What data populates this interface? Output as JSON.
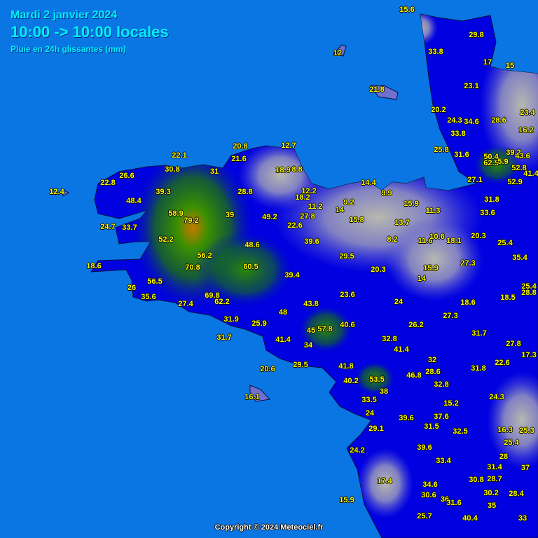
{
  "header": {
    "date": "Mardi 2 janvier 2024",
    "time_range": "10:00 -> 10:00 locales",
    "subtitle": "Pluie en 24h glissantes (mm)"
  },
  "footer": {
    "copyright": "Copyright © 2024 Meteociel.fr"
  },
  "colors": {
    "sea": "#0a76e4",
    "land_high": "#0000e0",
    "land_low": "#8c8cc8",
    "heavy_rain": "#2a8a00",
    "max_rain": "#c87800",
    "label": "#ffff00"
  },
  "stations": [
    "15.6",
    "29.8",
    "33.8",
    "12",
    "17",
    "15",
    "21.8",
    "23.1",
    "20.2",
    "23.4",
    "24.3",
    "34.6",
    "28.6",
    "16.2",
    "33.8",
    "25.8",
    "31.6",
    "22.1",
    "20.8",
    "12.7",
    "21.6",
    "30.8",
    "31",
    "18.9",
    "8.8",
    "50.4",
    "62.5",
    "5.9",
    "39.2",
    "43.6",
    "52.8",
    "41.4",
    "26.6",
    "22.8",
    "12.4",
    "39.3",
    "28.8",
    "14.4",
    "9.9",
    "12.2",
    "18.2",
    "27.1",
    "52.9",
    "15.9",
    "11.2",
    "9.2",
    "14",
    "31.8",
    "48.4",
    "11.3",
    "33.6",
    "27.8",
    "15.8",
    "58.9",
    "79.2",
    "39",
    "49.2",
    "13.7",
    "24.7",
    "33.7",
    "22.6",
    "52.2",
    "8.2",
    "11.6",
    "10.6",
    "18.1",
    "20.3",
    "39.6",
    "25.4",
    "48.6",
    "56.2",
    "29.5",
    "35.4",
    "18.6",
    "70.8",
    "60.5",
    "20.3",
    "15.9",
    "27.3",
    "39.4",
    "14",
    "56.5",
    "26",
    "35.6",
    "25.4",
    "28.8",
    "18.5",
    "23.6",
    "69.8",
    "62.2",
    "27.4",
    "18.6",
    "43.8",
    "24",
    "48",
    "27.3",
    "26.2",
    "45",
    "57.8",
    "40.6",
    "31.9",
    "25.9",
    "31.7",
    "31.7",
    "41.4",
    "32.8",
    "27.8",
    "34",
    "41.4",
    "17.3",
    "32",
    "29.5",
    "41.8",
    "22.6",
    "31.8",
    "28.6",
    "20.6",
    "46.8",
    "40.2",
    "53.5",
    "32.8",
    "38",
    "24.3",
    "16.1",
    "33.5",
    "15.2",
    "24",
    "39.6",
    "37.6",
    "31.5",
    "32.5",
    "16.3",
    "25.3",
    "29.1",
    "25.4",
    "39.6",
    "24.2",
    "28",
    "33.4",
    "31.4",
    "37",
    "17.4",
    "30.8",
    "28.7",
    "34.6",
    "30.2",
    "28.4",
    "30.6",
    "36",
    "31.6",
    "15.9",
    "35",
    "25.7",
    "40.4",
    "33"
  ]
}
